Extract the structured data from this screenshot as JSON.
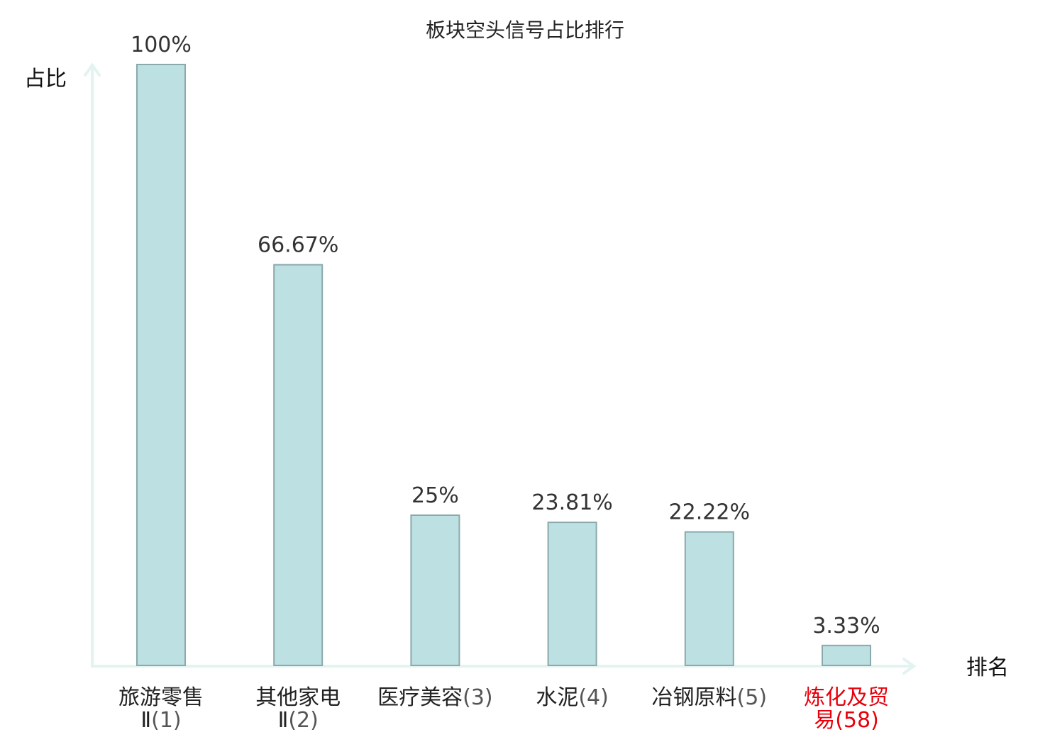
{
  "chart_data": {
    "type": "bar",
    "title": "板块空头信号占比排行",
    "ylabel": "占比",
    "xlabel": "排名",
    "ylim": [
      0,
      100
    ],
    "grid": false,
    "categories": [
      {
        "line1": "旅游零售",
        "line2": "Ⅱ",
        "rank": "(1)",
        "highlight": false
      },
      {
        "line1": "其他家电",
        "line2": "Ⅱ",
        "rank": "(2)",
        "highlight": false
      },
      {
        "line1": "医疗美容",
        "line2": "",
        "rank": "(3)",
        "highlight": false
      },
      {
        "line1": "水泥",
        "line2": "",
        "rank": "(4)",
        "highlight": false
      },
      {
        "line1": "冶钢原料",
        "line2": "",
        "rank": "(5)",
        "highlight": false
      },
      {
        "line1": "炼化及贸",
        "line2": "易",
        "rank": "(58)",
        "highlight": true
      }
    ],
    "values": [
      100,
      66.67,
      25,
      23.81,
      22.22,
      3.33
    ],
    "value_labels": [
      "100%",
      "66.67%",
      "25%",
      "23.81%",
      "22.22%",
      "3.33%"
    ],
    "colors": {
      "bar": "#bde0e2",
      "bar_border": "#8aa9ab",
      "axis": "#e2f3f0",
      "highlight": "#e8000b"
    }
  }
}
